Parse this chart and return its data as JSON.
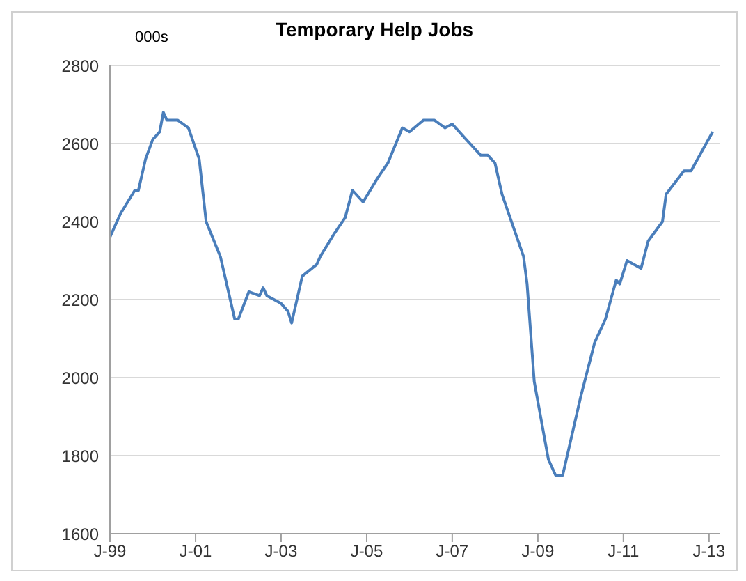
{
  "chart_data": {
    "type": "line",
    "title": "Temporary Help Jobs",
    "ylabel": "000s",
    "x": [
      "1999-01",
      "1999-04",
      "1999-08",
      "1999-09",
      "1999-11",
      "2000-01",
      "2000-03",
      "2000-04",
      "2000-05",
      "2000-08",
      "2000-11",
      "2001-02",
      "2001-04",
      "2001-08",
      "2001-12",
      "2002-01",
      "2002-04",
      "2002-07",
      "2002-08",
      "2002-09",
      "2003-01",
      "2003-03",
      "2003-04",
      "2003-07",
      "2003-11",
      "2003-12",
      "2004-04",
      "2004-07",
      "2004-09",
      "2004-12",
      "2005-04",
      "2005-07",
      "2005-11",
      "2006-01",
      "2006-05",
      "2006-08",
      "2006-11",
      "2007-01",
      "2007-05",
      "2007-09",
      "2007-11",
      "2008-01",
      "2008-03",
      "2008-09",
      "2008-10",
      "2008-12",
      "2009-04",
      "2009-06",
      "2009-08",
      "2009-09",
      "2010-01",
      "2010-05",
      "2010-08",
      "2010-11",
      "2010-12",
      "2011-02",
      "2011-06",
      "2011-08",
      "2011-12",
      "2012-01",
      "2012-06",
      "2012-08",
      "2013-02"
    ],
    "series": [
      {
        "color": "#4a7ebb",
        "values": [
          2360,
          2420,
          2480,
          2480,
          2560,
          2610,
          2630,
          2680,
          2660,
          2660,
          2640,
          2560,
          2400,
          2310,
          2150,
          2150,
          2220,
          2210,
          2230,
          2210,
          2190,
          2170,
          2140,
          2260,
          2290,
          2310,
          2370,
          2410,
          2480,
          2450,
          2510,
          2550,
          2640,
          2630,
          2660,
          2660,
          2640,
          2650,
          2610,
          2570,
          2570,
          2550,
          2470,
          2310,
          2240,
          1990,
          1790,
          1750,
          1750,
          1790,
          1950,
          2090,
          2150,
          2250,
          2240,
          2300,
          2280,
          2350,
          2400,
          2470,
          2530,
          2530,
          2630
        ]
      }
    ],
    "xlim": [
      "1999-01",
      "2013-04"
    ],
    "xticks": [
      {
        "value": "1999-01",
        "label": "J-99"
      },
      {
        "value": "2001-01",
        "label": "J-01"
      },
      {
        "value": "2003-01",
        "label": "J-03"
      },
      {
        "value": "2005-01",
        "label": "J-05"
      },
      {
        "value": "2007-01",
        "label": "J-07"
      },
      {
        "value": "2009-01",
        "label": "J-09"
      },
      {
        "value": "2011-01",
        "label": "J-11"
      },
      {
        "value": "2013-01",
        "label": "J-13"
      }
    ],
    "ylim": [
      1600,
      2800
    ],
    "yticks": [
      1600,
      1800,
      2000,
      2200,
      2400,
      2600,
      2800
    ],
    "grid": "y",
    "legend": false,
    "marker": "none",
    "line_style": "solid"
  }
}
